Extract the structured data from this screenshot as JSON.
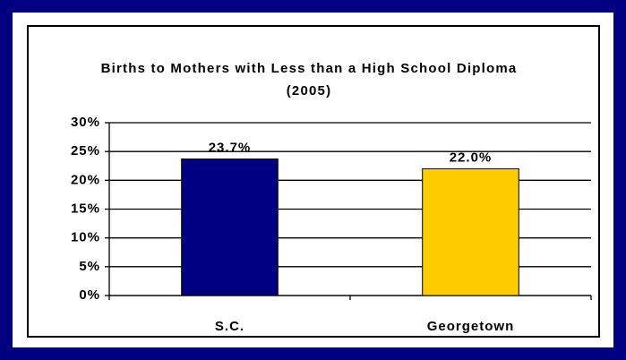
{
  "chart_data": {
    "type": "bar",
    "title": "Births to Mothers with Less than a High School Diploma (2005)",
    "categories": [
      "S.C.",
      "Georgetown"
    ],
    "values": [
      23.7,
      22.0
    ],
    "value_labels": [
      "23.7%",
      "22.0%"
    ],
    "colors": [
      "#000080",
      "#ffcc00"
    ],
    "ylim": [
      0,
      30
    ],
    "yticks": [
      {
        "value": 0,
        "label": "0%"
      },
      {
        "value": 5,
        "label": "5%"
      },
      {
        "value": 10,
        "label": "10%"
      },
      {
        "value": 15,
        "label": "15%"
      },
      {
        "value": 20,
        "label": "20%"
      },
      {
        "value": 25,
        "label": "25%"
      },
      {
        "value": 30,
        "label": "30%"
      }
    ],
    "grid": true
  }
}
